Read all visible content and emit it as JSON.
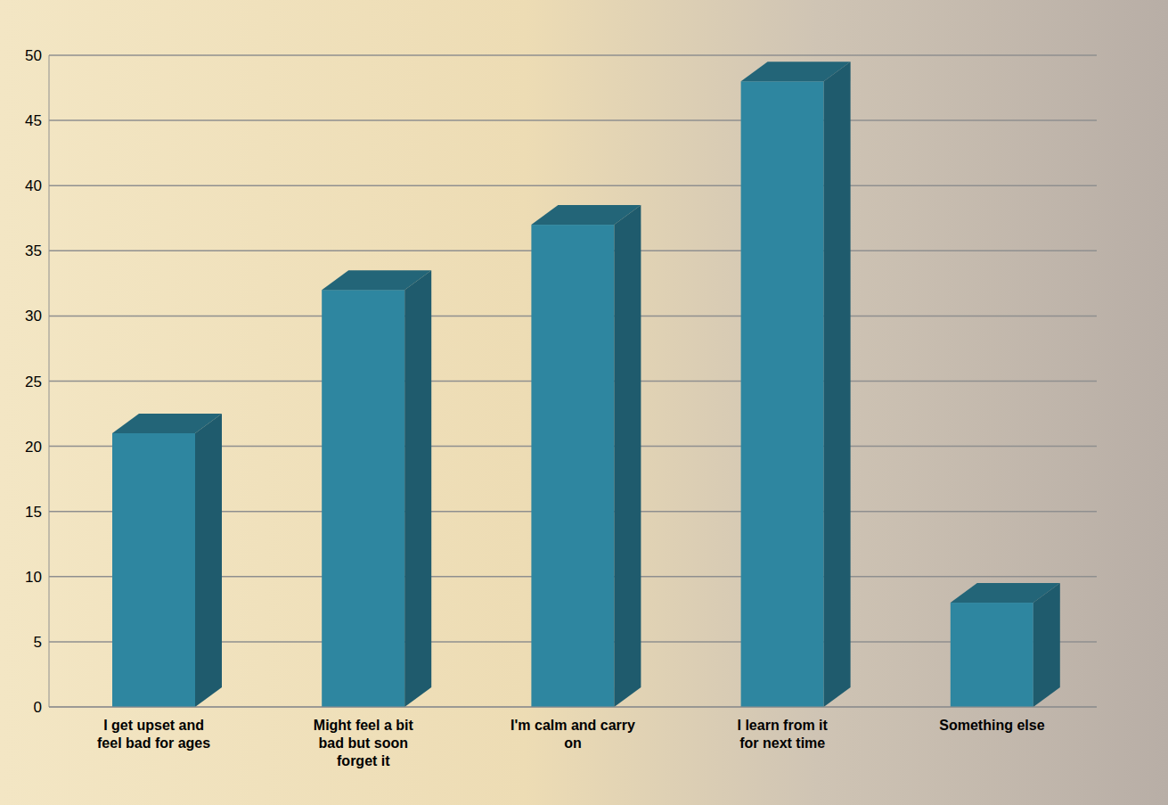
{
  "chart_data": {
    "type": "bar",
    "categories": [
      "I get upset and feel bad for ages",
      "Might feel a bit bad but soon forget it",
      "I'm calm and carry on",
      "I learn from it for next time",
      "Something else"
    ],
    "values": [
      21,
      32,
      37,
      48,
      8
    ],
    "color": "#2e86a0",
    "ylim": [
      0,
      50
    ],
    "yticks": [
      0,
      5,
      10,
      15,
      20,
      25,
      30,
      35,
      40,
      45,
      50
    ],
    "grid": true
  }
}
